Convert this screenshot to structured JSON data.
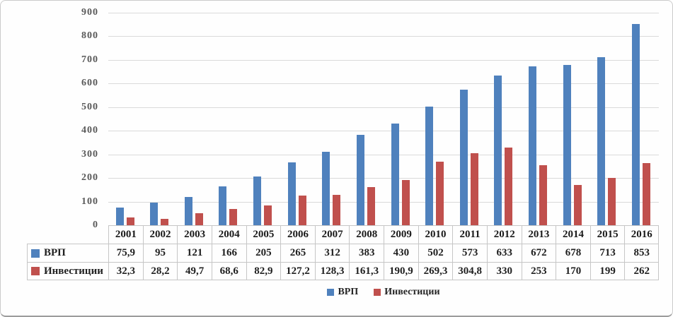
{
  "chart_data": {
    "type": "bar",
    "title": "",
    "xlabel": "",
    "ylabel": "",
    "categories": [
      "2001",
      "2002",
      "2003",
      "2004",
      "2005",
      "2006",
      "2007",
      "2008",
      "2009",
      "2010",
      "2011",
      "2012",
      "2013",
      "2014",
      "2015",
      "2016"
    ],
    "series": [
      {
        "name": "ВРП",
        "color": "#4F81BD",
        "values": [
          "75,9",
          "95",
          "121",
          "166",
          "205",
          "265",
          "312",
          "383",
          "430",
          "502",
          "573",
          "633",
          "672",
          "678",
          "713",
          "853"
        ]
      },
      {
        "name": "Инвестиции",
        "color": "#C0504D",
        "values": [
          "32,3",
          "28,2",
          "49,7",
          "68,6",
          "82,9",
          "127,2",
          "128,3",
          "161,3",
          "190,9",
          "269,3",
          "304,8",
          "330",
          "253",
          "170",
          "199",
          "262"
        ]
      }
    ],
    "ylim": [
      0,
      900
    ],
    "ytick_step": 100,
    "yticks": [
      "900",
      "800",
      "700",
      "600",
      "500",
      "400",
      "300",
      "200",
      "100",
      "0"
    ],
    "grid": true,
    "gridline_color": "#dadada",
    "legend_position": "bottom",
    "data_table_shown": true
  }
}
